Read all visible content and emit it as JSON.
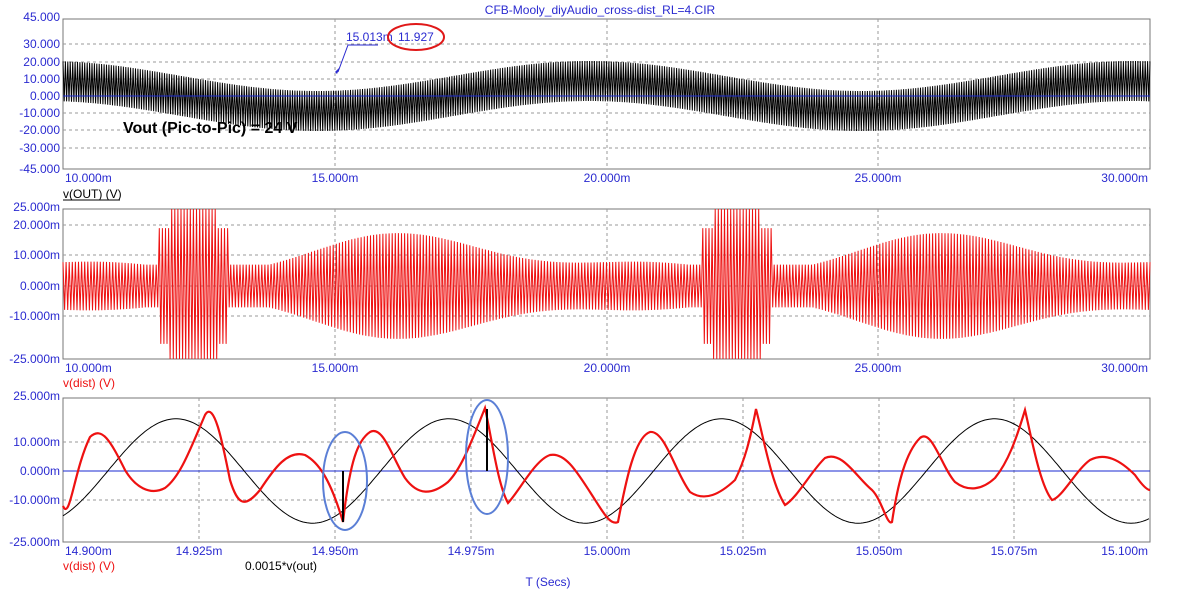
{
  "window_title": "CFB-Mooly_diyAudio_cross-dist_RL=4.CIR",
  "x_axis_label": "T (Secs)",
  "colors": {
    "axis_text": "#2a2ad0",
    "red_trace": "#ee1111",
    "black_trace": "#000000",
    "grid": "#9a9a9a",
    "ellipse": "#5b7fd6"
  },
  "chart_data": [
    {
      "type": "line",
      "panel": "top",
      "y_ticks": [
        "45.000",
        "30.000",
        "20.000",
        "10.000",
        "0.000",
        "-10.000",
        "-20.000",
        "-30.000",
        "-45.000"
      ],
      "ylim": [
        -45,
        45
      ],
      "x_ticks": [
        "10.000m",
        "15.000m",
        "20.000m",
        "25.000m",
        "30.000m"
      ],
      "xlim": [
        0.01,
        0.03
      ],
      "series": [
        {
          "name": "v(OUT) (V)",
          "color": "#000000",
          "description": "high-frequency carrier with 12 V amplitude riding on 100 Hz sine of ~9 V amplitude"
        }
      ],
      "envelope": {
        "offset_amplitude": 9,
        "carrier_amplitude": 12,
        "offset_period": 0.01
      },
      "cursor": {
        "x_label": "15.013m",
        "y_label": "11.927",
        "x": 0.015013,
        "y": 11.927
      },
      "annotation": "Vout (Pic-to-Pic) = 24 V"
    },
    {
      "type": "line",
      "panel": "middle",
      "y_ticks": [
        "25.000m",
        "20.000m",
        "10.000m",
        "0.000m",
        "-10.000m",
        "-25.000m"
      ],
      "ylim": [
        -0.025,
        0.025
      ],
      "x_ticks": [
        "10.000m",
        "15.000m",
        "20.000m",
        "25.000m",
        "30.000m"
      ],
      "xlim": [
        0.01,
        0.03
      ],
      "series": [
        {
          "name": "v(dist) (V)",
          "color": "#ee1111",
          "description": "distortion residual, envelope ~8–22 mV, clipping at ~12.3m and ~22.3m"
        }
      ]
    },
    {
      "type": "line",
      "panel": "bottom",
      "y_ticks": [
        "25.000m",
        "10.000m",
        "0.000m",
        "-10.000m",
        "-25.000m"
      ],
      "ylim": [
        -0.025,
        0.025
      ],
      "x_ticks": [
        "14.900m",
        "14.925m",
        "14.950m",
        "14.975m",
        "15.000m",
        "15.025m",
        "15.050m",
        "15.075m",
        "15.100m"
      ],
      "xlim": [
        0.0149,
        0.0151
      ],
      "series": [
        {
          "name": "v(dist) (V)",
          "color": "#ee1111"
        },
        {
          "name": "0.0015*v(out)",
          "color": "#000000",
          "amplitude": 0.018,
          "period": 5.02e-05
        }
      ],
      "highlights": [
        {
          "x": 0.014952
        },
        {
          "x": 0.014978
        }
      ]
    }
  ]
}
